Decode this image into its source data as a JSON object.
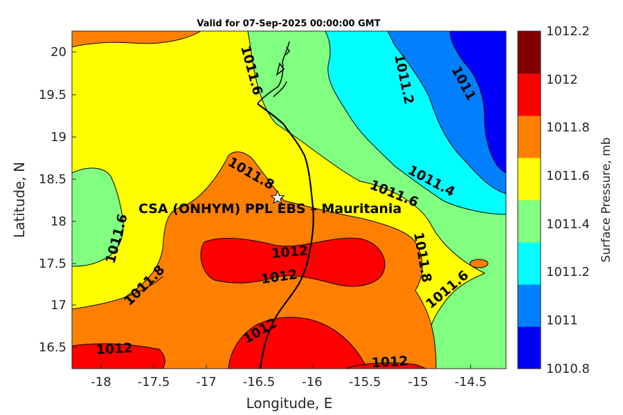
{
  "title": "Valid for 07-Sep-2025 00:00:00 GMT",
  "axes": {
    "xlabel": "Longitude, E",
    "ylabel": "Latitude, N",
    "xticks": [
      "-18",
      "-17.5",
      "-17",
      "-16.5",
      "-16",
      "-15.5",
      "-15",
      "-14.5"
    ],
    "yticks": [
      "20",
      "19.5",
      "19",
      "18.5",
      "18",
      "17.5",
      "17",
      "16.5"
    ]
  },
  "colorbar": {
    "label": "Surface Pressure, mb",
    "ticks": [
      "1012.2",
      "1012",
      "1011.8",
      "1011.6",
      "1011.4",
      "1011.2",
      "1011",
      "1010.8"
    ],
    "colors": [
      "#0000ff",
      "#0080ff",
      "#00ffff",
      "#80ff80",
      "#ffff00",
      "#ff8000",
      "#ff0000",
      "#800000"
    ]
  },
  "site": {
    "name": "CSA (ONHYM) PPL EBS  – Mauritania",
    "marker": "star-icon"
  },
  "contour_labels": {
    "c1": "1011.6",
    "c2": "1011.2",
    "c3": "1011",
    "c4": "1011.8",
    "c5": "1011.4",
    "c6": "1011.6",
    "c7": "1011.6",
    "c8": "1012",
    "c9": "1011.8",
    "c10": "1012",
    "c11": "1011.8",
    "c12": "1011.6",
    "c13": "1012",
    "c14": "1012",
    "c15": "1012"
  }
}
